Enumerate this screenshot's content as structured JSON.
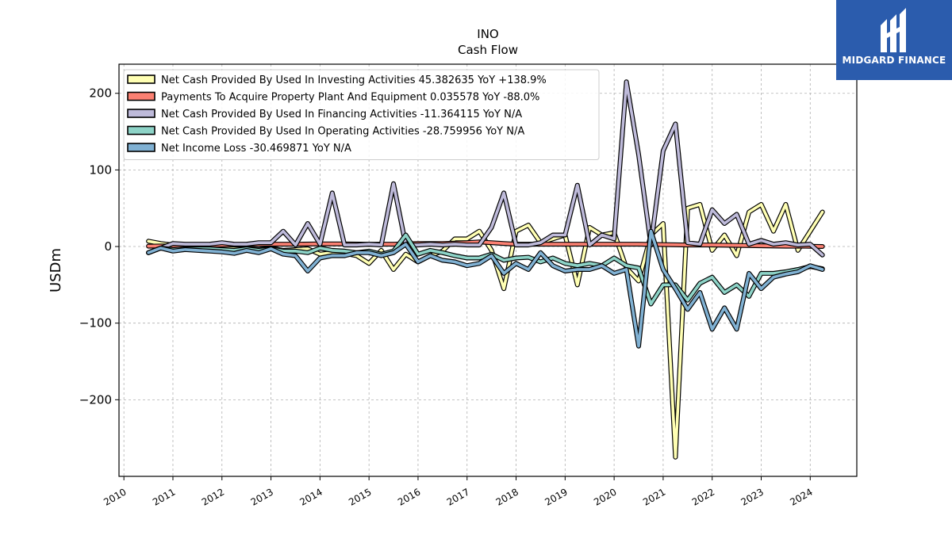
{
  "chart_data": {
    "type": "line",
    "title": "INO",
    "subtitle": "Cash Flow",
    "ylabel": "USDm",
    "xlabel": "",
    "xlim": [
      2009.9,
      2024.95
    ],
    "ylim": [
      -300,
      238
    ],
    "yticks": [
      -200,
      -100,
      0,
      100,
      200
    ],
    "ytick_labels": [
      "−200",
      "−100",
      "0",
      "100",
      "200"
    ],
    "xticks": [
      2010,
      2011,
      2012,
      2013,
      2014,
      2015,
      2016,
      2017,
      2018,
      2019,
      2020,
      2021,
      2022,
      2023,
      2024
    ],
    "grid": true,
    "legend_position": "top-left",
    "series": [
      {
        "name": "Net Cash Provided By Used In Investing Activities",
        "legend_label": "Net Cash Provided By Used In Investing Activities  45.382635 YoY +138.9%",
        "color": "#ffffb3",
        "x": [
          2010.5,
          2010.75,
          2011.0,
          2011.25,
          2011.5,
          2011.75,
          2012.0,
          2012.25,
          2012.5,
          2012.75,
          2013.0,
          2013.25,
          2013.5,
          2013.75,
          2014.0,
          2014.25,
          2014.5,
          2014.75,
          2015.0,
          2015.25,
          2015.5,
          2015.75,
          2016.0,
          2016.25,
          2016.5,
          2016.75,
          2017.0,
          2017.25,
          2017.5,
          2017.75,
          2018.0,
          2018.25,
          2018.5,
          2018.75,
          2019.0,
          2019.25,
          2019.5,
          2019.75,
          2020.0,
          2020.25,
          2020.5,
          2020.75,
          2021.0,
          2021.25,
          2021.5,
          2021.75,
          2022.0,
          2022.25,
          2022.5,
          2022.75,
          2023.0,
          2023.25,
          2023.5,
          2023.75,
          2024.0,
          2024.25
        ],
        "values": [
          7,
          4,
          2,
          0,
          -1,
          -3,
          -2,
          -3,
          -3,
          -4,
          -2,
          -5,
          -4,
          -3,
          -10,
          -8,
          -9,
          -12,
          -22,
          -5,
          -30,
          -10,
          -20,
          -12,
          -6,
          10,
          10,
          20,
          -5,
          -55,
          20,
          28,
          5,
          10,
          15,
          -50,
          25,
          15,
          18,
          -28,
          -45,
          15,
          30,
          -275,
          50,
          55,
          -5,
          15,
          -12,
          45,
          55,
          20,
          55,
          -5,
          20,
          45
        ]
      },
      {
        "name": "Payments To Acquire Property Plant And Equipment",
        "legend_label": "Payments To Acquire Property Plant And Equipment  0.035578 YoY -88.0%",
        "color": "#fb8072",
        "x": [
          2010.5,
          2011.0,
          2011.5,
          2012.0,
          2012.5,
          2013.0,
          2013.5,
          2014.0,
          2014.5,
          2015.0,
          2015.5,
          2016.0,
          2016.5,
          2017.0,
          2017.25,
          2017.5,
          2017.75,
          2018.0,
          2018.5,
          2019.0,
          2019.5,
          2020.0,
          2020.5,
          2021.0,
          2021.5,
          2022.0,
          2022.5,
          2023.0,
          2023.5,
          2024.0,
          2024.25
        ],
        "values": [
          0.5,
          1,
          1.5,
          2,
          2.5,
          3,
          3,
          3.5,
          3.5,
          3,
          3,
          4,
          4,
          5,
          6,
          5,
          4,
          3,
          3,
          3,
          3,
          3,
          3,
          2.5,
          2,
          2,
          1.5,
          1,
          0.5,
          0.3,
          0.04
        ]
      },
      {
        "name": "Net Cash Provided By Used In Financing Activities",
        "legend_label": "Net Cash Provided By Used In Financing Activities  -11.364115 YoY N/A",
        "color": "#bebada",
        "x": [
          2010.5,
          2010.75,
          2011.0,
          2011.25,
          2011.5,
          2011.75,
          2012.0,
          2012.25,
          2012.5,
          2012.75,
          2013.0,
          2013.25,
          2013.5,
          2013.75,
          2014.0,
          2014.25,
          2014.5,
          2014.75,
          2015.0,
          2015.25,
          2015.5,
          2015.75,
          2016.0,
          2016.25,
          2016.5,
          2016.75,
          2017.0,
          2017.25,
          2017.5,
          2017.75,
          2018.0,
          2018.25,
          2018.5,
          2018.75,
          2019.0,
          2019.25,
          2019.5,
          2019.75,
          2020.0,
          2020.25,
          2020.5,
          2020.75,
          2021.0,
          2021.25,
          2021.5,
          2021.75,
          2022.0,
          2022.25,
          2022.5,
          2022.75,
          2023.0,
          2023.25,
          2023.5,
          2023.75,
          2024.0,
          2024.25
        ],
        "values": [
          -8,
          -2,
          4,
          3,
          3,
          3,
          5,
          3,
          3,
          5,
          5,
          20,
          2,
          30,
          3,
          70,
          2,
          2,
          3,
          2,
          82,
          2,
          2,
          3,
          2,
          3,
          2,
          2,
          25,
          70,
          2,
          2,
          5,
          15,
          15,
          80,
          2,
          15,
          10,
          215,
          120,
          2,
          125,
          160,
          5,
          3,
          48,
          30,
          42,
          3,
          8,
          3,
          5,
          2,
          3,
          -11
        ]
      },
      {
        "name": "Net Cash Provided By Used In Operating Activities",
        "legend_label": "Net Cash Provided By Used In Operating Activities  -28.759956 YoY N/A",
        "color": "#8dd3c7",
        "x": [
          2010.5,
          2010.75,
          2011.0,
          2011.25,
          2011.5,
          2011.75,
          2012.0,
          2012.25,
          2012.5,
          2012.75,
          2013.0,
          2013.25,
          2013.5,
          2013.75,
          2014.0,
          2014.25,
          2014.5,
          2014.75,
          2015.0,
          2015.25,
          2015.5,
          2015.75,
          2016.0,
          2016.25,
          2016.5,
          2016.75,
          2017.0,
          2017.25,
          2017.5,
          2017.75,
          2018.0,
          2018.25,
          2018.5,
          2018.75,
          2019.0,
          2019.25,
          2019.5,
          2019.75,
          2020.0,
          2020.25,
          2020.5,
          2020.75,
          2021.0,
          2021.25,
          2021.5,
          2021.75,
          2022.0,
          2022.25,
          2022.5,
          2022.75,
          2023.0,
          2023.25,
          2023.5,
          2023.75,
          2024.0,
          2024.25
        ],
        "values": [
          -8,
          -2,
          -4,
          -3,
          -3,
          -3,
          -4,
          -5,
          -3,
          -5,
          -3,
          -6,
          -6,
          -8,
          -2,
          -5,
          -6,
          -8,
          -6,
          -10,
          -6,
          15,
          -10,
          -5,
          -8,
          -12,
          -15,
          -15,
          -10,
          -18,
          -15,
          -14,
          -20,
          -15,
          -22,
          -25,
          -22,
          -25,
          -15,
          -25,
          -28,
          -75,
          -50,
          -50,
          -70,
          -48,
          -40,
          -60,
          -50,
          -65,
          -35,
          -35,
          -33,
          -30,
          -26,
          -29
        ]
      },
      {
        "name": "Net Income Loss",
        "legend_label": "Net Income Loss  -30.469871 YoY N/A",
        "color": "#80b1d3",
        "x": [
          2010.5,
          2010.75,
          2011.0,
          2011.25,
          2011.5,
          2011.75,
          2012.0,
          2012.25,
          2012.5,
          2012.75,
          2013.0,
          2013.25,
          2013.5,
          2013.75,
          2014.0,
          2014.25,
          2014.5,
          2014.75,
          2015.0,
          2015.25,
          2015.5,
          2015.75,
          2016.0,
          2016.25,
          2016.5,
          2016.75,
          2017.0,
          2017.25,
          2017.5,
          2017.75,
          2018.0,
          2018.25,
          2018.5,
          2018.75,
          2019.0,
          2019.25,
          2019.5,
          2019.75,
          2020.0,
          2020.25,
          2020.5,
          2020.75,
          2021.0,
          2021.25,
          2021.5,
          2021.75,
          2022.0,
          2022.25,
          2022.5,
          2022.75,
          2023.0,
          2023.25,
          2023.5,
          2023.75,
          2024.0,
          2024.25
        ],
        "values": [
          -8,
          -2,
          -6,
          -4,
          -5,
          -6,
          -7,
          -9,
          -5,
          -8,
          -3,
          -10,
          -12,
          -32,
          -15,
          -12,
          -12,
          -8,
          -8,
          -12,
          -8,
          3,
          -20,
          -12,
          -18,
          -20,
          -25,
          -22,
          -12,
          -35,
          -22,
          -30,
          -8,
          -25,
          -32,
          -30,
          -30,
          -25,
          -35,
          -30,
          -130,
          20,
          -30,
          -55,
          -82,
          -60,
          -108,
          -80,
          -108,
          -35,
          -55,
          -40,
          -36,
          -33,
          -25,
          -30
        ]
      }
    ]
  },
  "brand": {
    "name": "MIDGARD FINANCE",
    "logo_icon": "midgard-m-logo-icon",
    "background": "#2b5cad"
  }
}
